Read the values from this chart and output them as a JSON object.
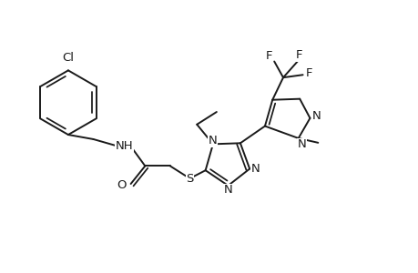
{
  "bg_color": "#ffffff",
  "line_color": "#1a1a1a",
  "line_width": 1.4,
  "font_size": 9.5,
  "figsize": [
    4.6,
    3.0
  ],
  "dpi": 100,
  "xlim": [
    0,
    4.6
  ],
  "ylim": [
    0,
    3.0
  ]
}
